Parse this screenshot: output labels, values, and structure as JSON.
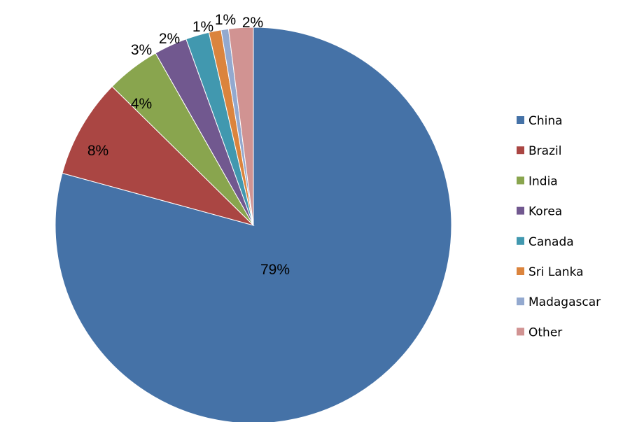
{
  "chart_data": {
    "type": "pie",
    "title": "",
    "legend_position": "right",
    "start_angle_deg": 0,
    "direction": "clockwise",
    "slices": [
      {
        "label": "China",
        "value": 79.0,
        "display": "79%",
        "color": "#4572A7"
      },
      {
        "label": "Brazil",
        "value": 8.1,
        "display": "8%",
        "color": "#AA4643"
      },
      {
        "label": "India",
        "value": 4.4,
        "display": "4%",
        "color": "#89A54E"
      },
      {
        "label": "Korea",
        "value": 2.7,
        "display": "3%",
        "color": "#71588F"
      },
      {
        "label": "Canada",
        "value": 1.9,
        "display": "2%",
        "color": "#4198AF"
      },
      {
        "label": "Sri Lanka",
        "value": 1.0,
        "display": "1%",
        "color": "#DB843D"
      },
      {
        "label": "Madagascar",
        "value": 0.6,
        "display": "1%",
        "color": "#93A9CF"
      },
      {
        "label": "Other",
        "value": 2.0,
        "display": "2%",
        "color": "#D19392"
      }
    ]
  }
}
